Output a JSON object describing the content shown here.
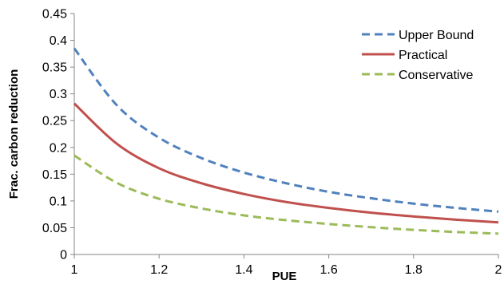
{
  "chart_data": {
    "type": "line",
    "title": "",
    "xlabel": "PUE",
    "ylabel": "Frac. carbon reduction",
    "xlim": [
      1,
      2
    ],
    "ylim": [
      0,
      0.45
    ],
    "x_ticks": [
      "1",
      "1.2",
      "1.4",
      "1.6",
      "1.8",
      "2"
    ],
    "y_ticks": [
      "0",
      "0.05",
      "0.1",
      "0.15",
      "0.2",
      "0.25",
      "0.3",
      "0.35",
      "0.4",
      "0.45"
    ],
    "grid": false,
    "legend_position": "top-right",
    "x": [
      1.0,
      1.1,
      1.2,
      1.3,
      1.4,
      1.5,
      1.6,
      1.7,
      1.8,
      1.9,
      2.0
    ],
    "series": [
      {
        "name": "Upper Bound",
        "color": "#4F81BD",
        "style": "dashed",
        "values": [
          0.385,
          0.279,
          0.218,
          0.18,
          0.153,
          0.133,
          0.117,
          0.105,
          0.095,
          0.087,
          0.08
        ]
      },
      {
        "name": "Practical",
        "color": "#C0504D",
        "style": "solid",
        "values": [
          0.282,
          0.207,
          0.161,
          0.133,
          0.113,
          0.098,
          0.087,
          0.078,
          0.071,
          0.065,
          0.06
        ]
      },
      {
        "name": "Conservative",
        "color": "#9BBB59",
        "style": "dashed",
        "values": [
          0.185,
          0.134,
          0.104,
          0.086,
          0.073,
          0.064,
          0.057,
          0.051,
          0.046,
          0.042,
          0.039
        ]
      }
    ]
  }
}
